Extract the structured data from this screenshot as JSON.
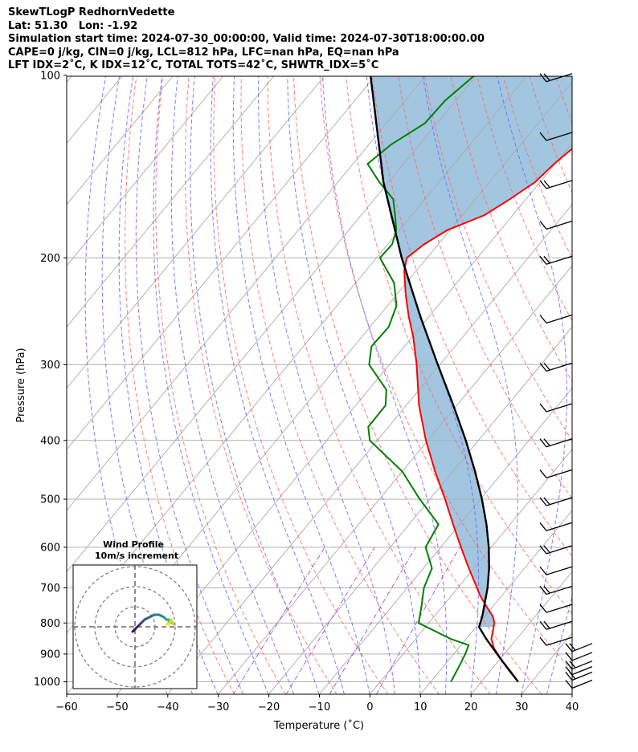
{
  "header": {
    "line1": "SkewTLogP RedhornVedette",
    "line2": "Lat: 51.30   Lon: -1.92",
    "line3": "Simulation start time: 2024-07-30_00:00:00, Valid time: 2024-07-30T18:00:00.00",
    "line4": "CAPE=0 j/kg, CIN=0 j/kg, LCL=812 hPa, LFC=nan hPa, EQ=nan hPa",
    "line5": "LFT IDX=2˚C, K IDX=12˚C, TOTAL TOTS=42˚C, SHWTR_IDX=5˚C"
  },
  "chart_data": [
    {
      "type": "line",
      "subtype": "skew-t log-p",
      "xlabel": "Temperature (˚C)",
      "ylabel": "Pressure (hPa)",
      "xlim": [
        -60,
        40
      ],
      "ylim": [
        1050,
        100
      ],
      "y_scale": "log",
      "grid": true,
      "x_ticks": [
        "−60",
        "−50",
        "−40",
        "−30",
        "−20",
        "−10",
        "0",
        "10",
        "20",
        "30",
        "40"
      ],
      "y_ticks": [
        "100",
        "200",
        "300",
        "400",
        "500",
        "600",
        "700",
        "800",
        "900",
        "1000"
      ],
      "colors": {
        "temperature": "#ff0000",
        "dewpoint": "#008000",
        "parcel": "#000000",
        "shading": "#a3c6e0",
        "dry_adiabats": "#ff6666",
        "moist_adiabats": "#6666ff",
        "mixing_ratio": "#9933cc",
        "isotherms": "#aaaaaa"
      },
      "series": [
        {
          "key": "temperature",
          "p": [
            1000,
            960,
            920,
            880,
            850,
            820,
            800,
            780,
            750,
            720,
            700,
            650,
            600,
            550,
            500,
            450,
            400,
            350,
            300,
            270,
            250,
            230,
            210,
            200,
            190,
            180,
            170,
            160,
            150,
            140,
            130,
            120,
            110,
            100
          ],
          "t": [
            27.3,
            24.0,
            20.4,
            17.0,
            15.0,
            13.8,
            13.0,
            11.6,
            8.6,
            5.6,
            3.8,
            -1.0,
            -6.0,
            -11.3,
            -17.0,
            -23.5,
            -30.4,
            -37.5,
            -44.6,
            -49.8,
            -54.0,
            -58.2,
            -62.4,
            -64.0,
            -62.8,
            -60.5,
            -55.6,
            -53.2,
            -51.0,
            -50.2,
            -48.8,
            -49.8,
            -50.2,
            -52.0
          ]
        },
        {
          "key": "dewpoint",
          "p": [
            1000,
            950,
            900,
            870,
            850,
            800,
            750,
            700,
            650,
            600,
            550,
            500,
            450,
            400,
            380,
            350,
            330,
            300,
            280,
            260,
            240,
            220,
            200,
            190,
            180,
            170,
            160,
            150,
            140,
            130,
            120,
            110,
            100
          ],
          "t": [
            14.0,
            13.2,
            12.3,
            11.5,
            7.0,
            -2.0,
            -4.2,
            -6.7,
            -8.3,
            -13.0,
            -14.2,
            -22.0,
            -30.0,
            -41.5,
            -44.0,
            -44.1,
            -46.5,
            -54.0,
            -56.5,
            -56.3,
            -58.2,
            -62.4,
            -69.3,
            -69.1,
            -70.6,
            -73.3,
            -76.3,
            -81.8,
            -87.1,
            -85.6,
            -82.4,
            -82.1,
            -80.4
          ]
        },
        {
          "key": "parcel",
          "p": [
            1000,
            950,
            900,
            850,
            812,
            780,
            750,
            700,
            650,
            600,
            550,
            500,
            450,
            400,
            350,
            300,
            250,
            200,
            150,
            100
          ],
          "t": [
            27.3,
            23.0,
            18.6,
            14.0,
            10.6,
            9.5,
            8.2,
            5.9,
            3.0,
            -0.5,
            -4.7,
            -9.7,
            -15.6,
            -22.5,
            -30.7,
            -40.4,
            -51.7,
            -65.0,
            -81.0,
            -101.0
          ]
        }
      ],
      "wind_barb_levels": [
        "100",
        "125",
        "150",
        "175",
        "200",
        "250",
        "300",
        "350",
        "400",
        "450",
        "500",
        "550",
        "600",
        "650",
        "700",
        "750",
        "800",
        "850",
        "870",
        "900",
        "930",
        "950",
        "970",
        "1000"
      ],
      "inset": {
        "title": "Wind Profile",
        "subtitle": "10m/s increment",
        "rings_ms": [
          10,
          20,
          30
        ],
        "hodograph_u": [
          -1,
          0,
          1,
          2,
          3,
          4,
          6,
          8,
          10,
          12,
          13,
          14,
          14,
          14,
          15,
          16,
          15,
          14,
          13
        ],
        "hodograph_v": [
          -2,
          -1,
          0,
          1,
          2,
          3,
          4,
          5,
          5,
          4,
          3,
          3,
          2,
          1,
          2,
          1,
          3,
          1,
          1
        ]
      }
    }
  ]
}
